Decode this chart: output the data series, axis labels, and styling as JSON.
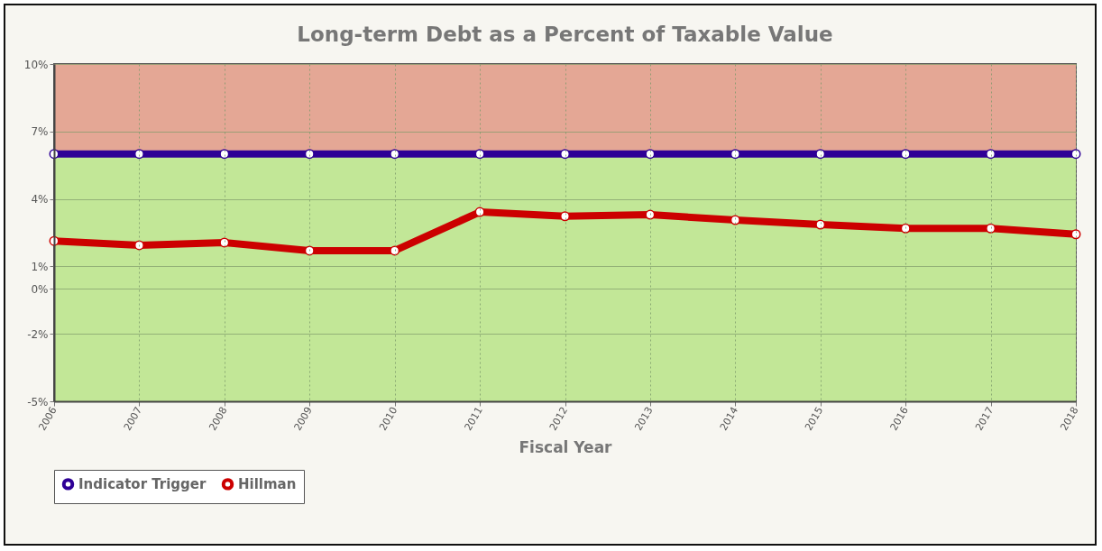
{
  "chart_data": {
    "type": "line",
    "title": "Long-term Debt as a Percent of Taxable Value",
    "xlabel": "Fiscal Year",
    "categories": [
      "2006",
      "2007",
      "2008",
      "2009",
      "2010",
      "2011",
      "2012",
      "2013",
      "2014",
      "2015",
      "2016",
      "2017",
      "2018"
    ],
    "series": [
      {
        "name": "Indicator Trigger",
        "color": "#2e0096",
        "values": [
          6,
          6,
          6,
          6,
          6,
          6,
          6,
          6,
          6,
          6,
          6,
          6,
          6
        ]
      },
      {
        "name": "Hillman",
        "color": "#cc0000",
        "values": [
          2.13,
          1.94,
          2.06,
          1.7,
          1.7,
          3.42,
          3.23,
          3.3,
          3.06,
          2.86,
          2.69,
          2.69,
          2.43
        ]
      }
    ],
    "ylim": [
      -5,
      10
    ],
    "yticks": [
      {
        "value": 10,
        "label": "10%"
      },
      {
        "value": 7,
        "label": "7%"
      },
      {
        "value": 4,
        "label": "4%"
      },
      {
        "value": 1,
        "label": "1%"
      },
      {
        "value": 0,
        "label": "0%"
      },
      {
        "value": -2,
        "label": "-2%"
      },
      {
        "value": -5,
        "label": "-5%"
      }
    ],
    "bands": [
      {
        "axis": "y",
        "from": 6,
        "to": 10,
        "color": "#e4a795"
      },
      {
        "axis": "y",
        "from": -5,
        "to": 6,
        "color": "#c2e797"
      }
    ],
    "grid": true,
    "legend": "bottom",
    "marker": "circle",
    "line_style": "solid"
  }
}
